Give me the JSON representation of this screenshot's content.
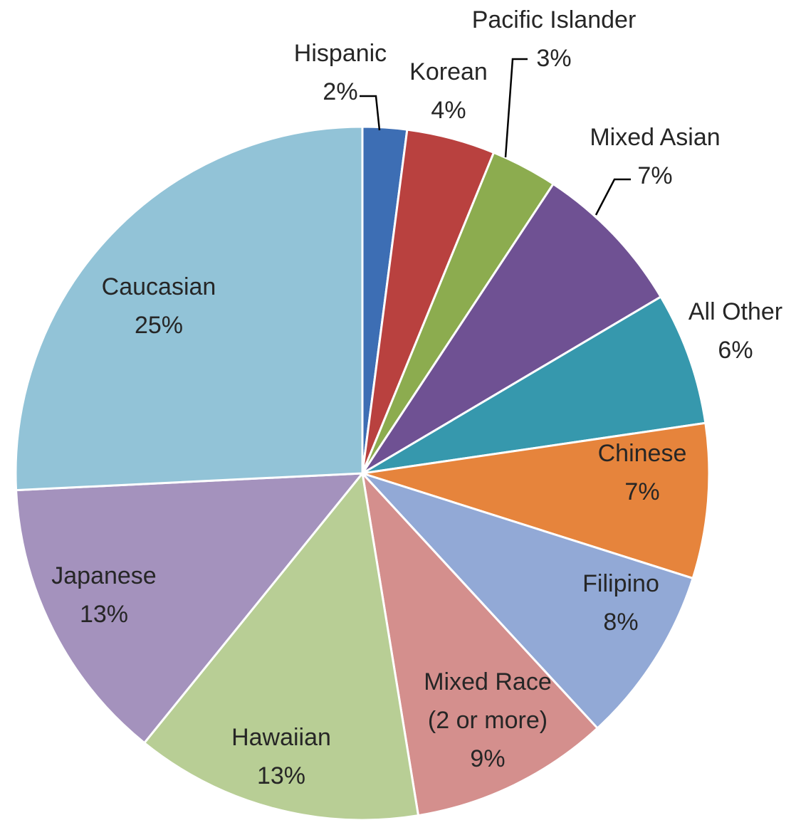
{
  "chart_data": {
    "type": "pie",
    "title": "",
    "slices": [
      {
        "label": "Hispanic",
        "value": 2,
        "value_label": "2%",
        "color": "#3d6eb4"
      },
      {
        "label": "Korean",
        "value": 4,
        "value_label": "4%",
        "color": "#b9413f"
      },
      {
        "label": "Pacific Islander",
        "value": 3,
        "value_label": "3%",
        "color": "#8cac4f"
      },
      {
        "label": "Mixed Asian",
        "value": 7,
        "value_label": "7%",
        "color": "#6f5193"
      },
      {
        "label": "All Other",
        "value": 6,
        "value_label": "6%",
        "color": "#3698ad"
      },
      {
        "label": "Chinese",
        "value": 7,
        "value_label": "7%",
        "color": "#e6843c"
      },
      {
        "label": "Filipino",
        "value": 8,
        "value_label": "8%",
        "color": "#92a9d6"
      },
      {
        "label": "Mixed Race\n(2 or more)",
        "value": 9,
        "value_label": "9%",
        "color": "#d48f8d"
      },
      {
        "label": "Hawaiian",
        "value": 13,
        "value_label": "13%",
        "color": "#b8ce95"
      },
      {
        "label": "Japanese",
        "value": 13,
        "value_label": "13%",
        "color": "#a492bd"
      },
      {
        "label": "Caucasian",
        "value": 25,
        "value_label": "25%",
        "color": "#92c3d7"
      }
    ],
    "start_direction": "top",
    "direction": "clockwise",
    "legend": "none",
    "data_labels": "category name and percentage"
  }
}
